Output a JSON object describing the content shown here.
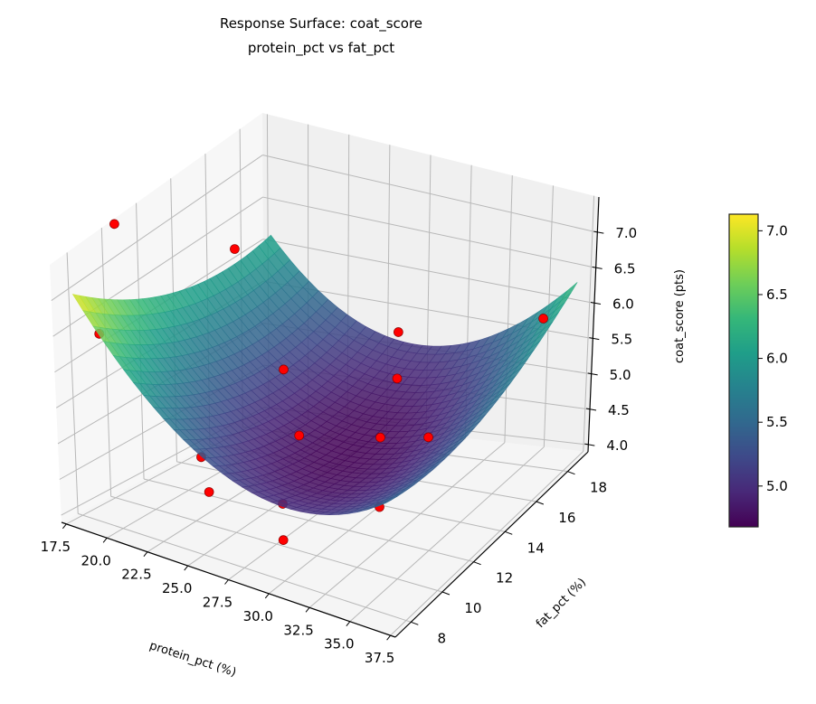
{
  "chart_data": {
    "type": "surface3d",
    "title_line1": "Response Surface: coat_score",
    "title_line2": "protein_pct vs fat_pct",
    "xlabel": "protein_pct (%)",
    "ylabel": "fat_pct (%)",
    "zlabel": "coat_score (pts)",
    "xlim": [
      17.2,
      37.8
    ],
    "ylim": [
      7.0,
      19.3
    ],
    "zlim": [
      3.9,
      7.5
    ],
    "xticks": [
      "17.5",
      "20.0",
      "22.5",
      "25.0",
      "27.5",
      "30.0",
      "32.5",
      "35.0",
      "37.5"
    ],
    "yticks": [
      "8",
      "10",
      "12",
      "14",
      "16",
      "18"
    ],
    "zticks": [
      "4.0",
      "4.5",
      "5.0",
      "5.5",
      "6.0",
      "6.5",
      "7.0"
    ],
    "surface": {
      "model": "z = 4.7 + 0.0125(x-29)^2 + 0.012(y-13)^2 + 0.008(x-29)(y-13)",
      "x_range": [
        18,
        37
      ],
      "y_range": [
        7.5,
        19
      ],
      "colormap": "viridis",
      "alpha": 0.85
    },
    "points": [
      {
        "x": 18,
        "y": 10,
        "z": 7.6
      },
      {
        "x": 20,
        "y": 15,
        "z": 6.6
      },
      {
        "x": 19,
        "y": 8,
        "z": 6.5
      },
      {
        "x": 24,
        "y": 14,
        "z": 5.4
      },
      {
        "x": 27,
        "y": 12,
        "z": 5.0
      },
      {
        "x": 27,
        "y": 18,
        "z": 5.4
      },
      {
        "x": 29,
        "y": 16,
        "z": 5.2
      },
      {
        "x": 30,
        "y": 14,
        "z": 4.8
      },
      {
        "x": 24,
        "y": 9,
        "z": 5.0
      },
      {
        "x": 33,
        "y": 14,
        "z": 4.95
      },
      {
        "x": 37,
        "y": 17,
        "z": 6.2
      },
      {
        "x": 29,
        "y": 9,
        "z": 4.7
      },
      {
        "x": 30,
        "y": 8,
        "z": 4.45
      },
      {
        "x": 26,
        "y": 7.5,
        "z": 4.9
      },
      {
        "x": 34,
        "y": 10,
        "z": 4.8
      }
    ],
    "point_color": "#ff0000",
    "colorbar": {
      "range": [
        4.68,
        7.13
      ],
      "ticks": [
        "5.0",
        "5.5",
        "6.0",
        "6.5",
        "7.0"
      ]
    },
    "grid": true
  }
}
